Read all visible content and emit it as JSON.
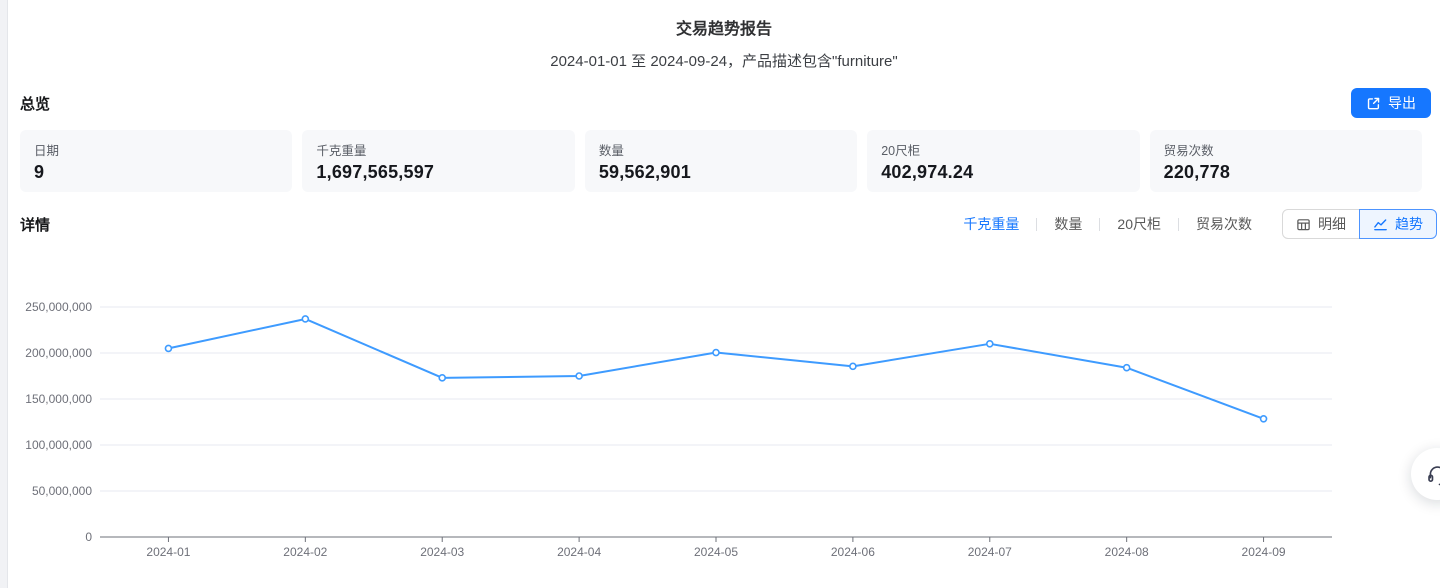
{
  "header": {
    "title": "交易趋势报告",
    "subtitle": "2024-01-01 至 2024-09-24，产品描述包含\"furniture\""
  },
  "overview": {
    "section_title": "总览",
    "export_label": "导出",
    "export_icon": "export-arrow-box",
    "cards": [
      {
        "label": "日期",
        "value": "9"
      },
      {
        "label": "千克重量",
        "value": "1,697,565,597"
      },
      {
        "label": "数量",
        "value": "59,562,901"
      },
      {
        "label": "20尺柜",
        "value": "402,974.24"
      },
      {
        "label": "贸易次数",
        "value": "220,778"
      }
    ]
  },
  "details": {
    "section_title": "详情",
    "metric_tabs": [
      {
        "label": "千克重量",
        "active": true
      },
      {
        "label": "数量",
        "active": false
      },
      {
        "label": "20尺柜",
        "active": false
      },
      {
        "label": "贸易次数",
        "active": false
      }
    ],
    "view_toggle": [
      {
        "label": "明细",
        "icon": "table-grid",
        "active": false
      },
      {
        "label": "趋势",
        "icon": "line-chart",
        "active": true
      }
    ]
  },
  "chart_data": {
    "type": "line",
    "series_name": "千克重量",
    "categories": [
      "2024-01",
      "2024-02",
      "2024-03",
      "2024-04",
      "2024-05",
      "2024-06",
      "2024-07",
      "2024-08",
      "2024-09"
    ],
    "values": [
      205000000,
      237000000,
      173000000,
      175000000,
      200500000,
      185500000,
      210000000,
      184000000,
      128500000
    ],
    "ylim": [
      0,
      250000000
    ],
    "y_tick_interval": 50000000,
    "y_tick_labels": [
      "0",
      "50,000,000",
      "100,000,000",
      "150,000,000",
      "200,000,000",
      "250,000,000"
    ],
    "grid": true,
    "legend": "none",
    "point_style": "hollow-circle"
  },
  "floating_button": {
    "icon": "headset"
  },
  "colors": {
    "primary": "#1677ff",
    "line": "#3e9bff",
    "axis": "#6e7079",
    "grid": "#e7eaf2",
    "axis_label": "#6e7079",
    "card_bg": "#f7f8fa",
    "toggle_active_bg": "#eef5ff",
    "toggle_active_border": "#4d94ff"
  }
}
